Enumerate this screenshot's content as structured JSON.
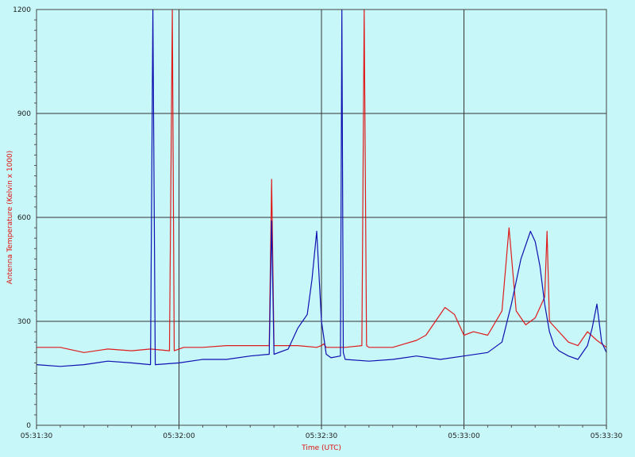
{
  "chart_data": {
    "type": "line",
    "title": "",
    "xlabel": "Time (UTC)",
    "ylabel": "Antenna Temperature (Kelvin x 1000)",
    "xlim": [
      "05:31:30",
      "05:33:30"
    ],
    "ylim": [
      0,
      1200
    ],
    "x_ticks": [
      "05:31:30",
      "05:32:00",
      "05:32:30",
      "05:33:00",
      "05:33:30"
    ],
    "y_ticks": [
      "0",
      "300",
      "600",
      "900",
      "1200"
    ],
    "grid": true,
    "legend": "none",
    "series": [
      {
        "color": "#e01010",
        "x_unit": "seconds after 05:31:30",
        "x": [
          0,
          5,
          10,
          15,
          20,
          24,
          28,
          28.6,
          29,
          31,
          35,
          40,
          45,
          49,
          49.5,
          50,
          55,
          59,
          60,
          60.5,
          61,
          65,
          68.5,
          69,
          69.5,
          70,
          75,
          80,
          82,
          84,
          86,
          88,
          90,
          92,
          95,
          98,
          99.5,
          101,
          103,
          105,
          107,
          107.5,
          108,
          110,
          112,
          114,
          116,
          118,
          120
        ],
        "y": [
          225,
          225,
          210,
          220,
          215,
          220,
          215,
          1200,
          215,
          225,
          225,
          230,
          230,
          230,
          710,
          230,
          230,
          225,
          230,
          235,
          225,
          225,
          230,
          1200,
          230,
          225,
          225,
          245,
          260,
          300,
          340,
          320,
          260,
          270,
          260,
          330,
          570,
          330,
          290,
          310,
          370,
          560,
          300,
          270,
          240,
          230,
          270,
          245,
          225
        ]
      },
      {
        "color": "#1010b0",
        "x_unit": "seconds after 05:31:30",
        "x": [
          0,
          5,
          10,
          15,
          20,
          24,
          24.5,
          25,
          30,
          35,
          40,
          45,
          49,
          49.5,
          50,
          53,
          55,
          57,
          58,
          59,
          60,
          61,
          62,
          64,
          64.3,
          64.6,
          65,
          70,
          75,
          80,
          85,
          90,
          95,
          98,
          100,
          102,
          104,
          105,
          106,
          107,
          108,
          109,
          110,
          112,
          114,
          116,
          117,
          118,
          119,
          120
        ],
        "y": [
          175,
          170,
          175,
          185,
          180,
          175,
          1200,
          175,
          180,
          190,
          190,
          200,
          205,
          590,
          205,
          220,
          280,
          320,
          420,
          560,
          300,
          205,
          195,
          200,
          1200,
          210,
          190,
          185,
          190,
          200,
          190,
          200,
          210,
          240,
          350,
          480,
          560,
          530,
          460,
          350,
          270,
          230,
          215,
          200,
          190,
          230,
          280,
          350,
          240,
          210
        ]
      }
    ]
  }
}
